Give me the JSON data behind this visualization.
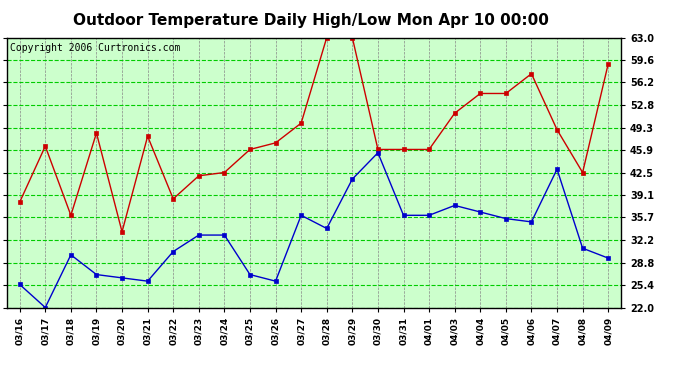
{
  "title": "Outdoor Temperature Daily High/Low Mon Apr 10 00:00",
  "copyright": "Copyright 2006 Curtronics.com",
  "dates": [
    "03/16",
    "03/17",
    "03/18",
    "03/19",
    "03/20",
    "03/21",
    "03/22",
    "03/23",
    "03/24",
    "03/25",
    "03/26",
    "03/27",
    "03/28",
    "03/29",
    "03/30",
    "03/31",
    "04/01",
    "04/03",
    "04/04",
    "04/05",
    "04/06",
    "04/07",
    "04/08",
    "04/09"
  ],
  "high_temps": [
    38.0,
    46.5,
    36.0,
    48.5,
    33.5,
    48.0,
    38.5,
    42.0,
    42.5,
    46.0,
    47.0,
    50.0,
    63.0,
    63.0,
    46.0,
    46.0,
    46.0,
    51.5,
    54.5,
    54.5,
    57.5,
    49.0,
    42.5,
    59.0
  ],
  "low_temps": [
    25.5,
    22.0,
    30.0,
    27.0,
    26.5,
    26.0,
    30.5,
    33.0,
    33.0,
    27.0,
    26.0,
    36.0,
    34.0,
    41.5,
    45.5,
    36.0,
    36.0,
    37.5,
    36.5,
    35.5,
    35.0,
    43.0,
    31.0,
    29.5
  ],
  "yticks": [
    22.0,
    25.4,
    28.8,
    32.2,
    35.7,
    39.1,
    42.5,
    45.9,
    49.3,
    52.8,
    56.2,
    59.6,
    63.0
  ],
  "ylim": [
    22.0,
    63.0
  ],
  "high_color": "#cc0000",
  "low_color": "#0000cc",
  "grid_color": "#00cc00",
  "bg_color": "#ccffcc",
  "title_fontsize": 11,
  "copyright_fontsize": 7
}
